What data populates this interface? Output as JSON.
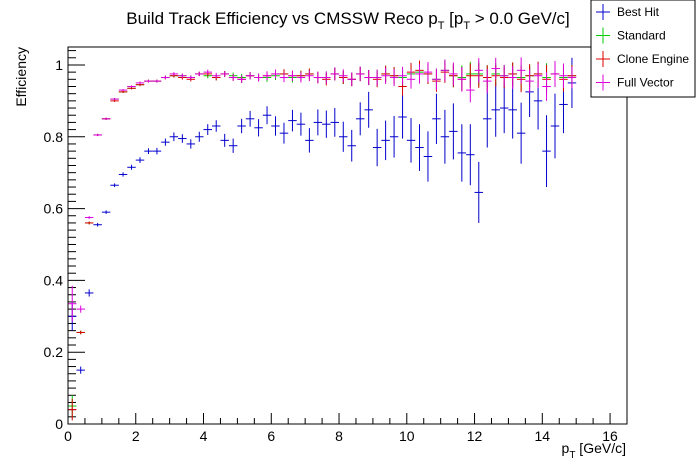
{
  "chart_data": {
    "type": "scatter",
    "title_parts": [
      "Build Track Efficiency vs CMSSW Reco p",
      "T",
      " [p",
      "T",
      " > 0.0 GeV/c]"
    ],
    "xlabel_parts": [
      "p",
      "T",
      " [GeV/c]"
    ],
    "ylabel": "Efficiency",
    "xlim": [
      0,
      16.5
    ],
    "ylim": [
      0,
      1.05
    ],
    "x_ticks": [
      0,
      2,
      4,
      6,
      8,
      10,
      12,
      14,
      16
    ],
    "y_ticks": [
      0,
      0.2,
      0.4,
      0.6,
      0.8,
      1
    ],
    "x_tick_labels": [
      "0",
      "2",
      "4",
      "6",
      "8",
      "10",
      "12",
      "14",
      "16"
    ],
    "y_tick_labels": [
      "0",
      "0.2",
      "0.4",
      "0.6",
      "0.8",
      "1"
    ],
    "bin_width": 0.25,
    "legend_position": "top-right",
    "series": [
      {
        "name": "Best Hit",
        "color": "#0000cc",
        "x": [
          0.125,
          0.375,
          0.625,
          0.875,
          1.125,
          1.375,
          1.625,
          1.875,
          2.125,
          2.375,
          2.625,
          2.875,
          3.125,
          3.375,
          3.625,
          3.875,
          4.125,
          4.375,
          4.625,
          4.875,
          5.125,
          5.375,
          5.625,
          5.875,
          6.125,
          6.375,
          6.625,
          6.875,
          7.125,
          7.375,
          7.625,
          7.875,
          8.125,
          8.375,
          8.625,
          8.875,
          9.125,
          9.375,
          9.625,
          9.875,
          10.125,
          10.375,
          10.625,
          10.875,
          11.125,
          11.375,
          11.625,
          11.875,
          12.125,
          12.375,
          12.625,
          12.875,
          13.125,
          13.375,
          13.625,
          13.875,
          14.125,
          14.375,
          14.625,
          14.875
        ],
        "y": [
          0.3,
          0.15,
          0.365,
          0.555,
          0.59,
          0.665,
          0.695,
          0.715,
          0.735,
          0.76,
          0.76,
          0.785,
          0.8,
          0.795,
          0.78,
          0.8,
          0.82,
          0.83,
          0.79,
          0.775,
          0.83,
          0.85,
          0.825,
          0.86,
          0.83,
          0.81,
          0.845,
          0.835,
          0.79,
          0.84,
          0.835,
          0.84,
          0.8,
          0.775,
          0.85,
          0.875,
          0.77,
          0.79,
          0.8,
          0.855,
          0.79,
          0.77,
          0.745,
          0.85,
          0.8,
          0.815,
          0.755,
          0.75,
          0.645,
          0.85,
          0.875,
          0.88,
          0.875,
          0.81,
          0.925,
          0.9,
          0.76,
          0.83,
          0.89,
          0.95
        ],
        "err": [
          0.04,
          0.01,
          0.01,
          0.005,
          0.005,
          0.005,
          0.006,
          0.007,
          0.008,
          0.008,
          0.009,
          0.01,
          0.012,
          0.012,
          0.013,
          0.014,
          0.015,
          0.016,
          0.018,
          0.02,
          0.02,
          0.022,
          0.024,
          0.025,
          0.027,
          0.029,
          0.03,
          0.032,
          0.034,
          0.036,
          0.038,
          0.04,
          0.042,
          0.044,
          0.046,
          0.05,
          0.052,
          0.055,
          0.058,
          0.06,
          0.062,
          0.065,
          0.07,
          0.07,
          0.075,
          0.078,
          0.08,
          0.085,
          0.085,
          0.08,
          0.075,
          0.07,
          0.08,
          0.085,
          0.07,
          0.08,
          0.1,
          0.09,
          0.08,
          0.07
        ]
      },
      {
        "name": "Standard",
        "color": "#00cc00",
        "x": [
          0.125,
          0.375,
          0.625,
          0.875,
          1.125,
          1.375,
          1.625,
          1.875,
          2.125,
          2.375,
          2.625,
          2.875,
          3.125,
          3.375,
          3.625,
          3.875,
          4.125,
          4.375,
          4.625,
          4.875,
          5.125,
          5.375,
          5.625,
          5.875,
          6.125,
          6.375,
          6.625,
          6.875,
          7.125,
          7.375,
          7.625,
          7.875,
          8.125,
          8.375,
          8.625,
          8.875,
          9.125,
          9.375,
          9.625,
          9.875,
          10.125,
          10.375,
          10.625,
          10.875,
          11.125,
          11.375,
          11.625,
          11.875,
          12.125,
          12.375,
          12.625,
          12.875,
          13.125,
          13.375,
          13.625,
          13.875,
          14.125,
          14.375,
          14.625,
          14.875
        ],
        "y": [
          0.05,
          0.255,
          0.56,
          0.805,
          0.85,
          0.905,
          0.925,
          0.935,
          0.945,
          0.955,
          0.955,
          0.965,
          0.97,
          0.97,
          0.965,
          0.975,
          0.97,
          0.965,
          0.975,
          0.97,
          0.965,
          0.97,
          0.965,
          0.965,
          0.97,
          0.975,
          0.965,
          0.97,
          0.975,
          0.965,
          0.965,
          0.975,
          0.965,
          0.96,
          0.975,
          0.965,
          0.965,
          0.975,
          0.97,
          0.965,
          0.975,
          0.98,
          0.975,
          0.96,
          0.985,
          0.97,
          0.965,
          0.975,
          0.975,
          0.965,
          0.975,
          0.97,
          0.975,
          0.965,
          0.97,
          0.975,
          0.965,
          0.975,
          0.965,
          0.97
        ],
        "err": [
          0.03,
          0.005,
          0.004,
          0.003,
          0.003,
          0.003,
          0.003,
          0.003,
          0.004,
          0.004,
          0.004,
          0.005,
          0.005,
          0.006,
          0.006,
          0.006,
          0.007,
          0.008,
          0.008,
          0.009,
          0.01,
          0.01,
          0.011,
          0.012,
          0.012,
          0.013,
          0.014,
          0.014,
          0.015,
          0.016,
          0.017,
          0.018,
          0.018,
          0.019,
          0.02,
          0.021,
          0.022,
          0.023,
          0.024,
          0.025,
          0.026,
          0.027,
          0.028,
          0.03,
          0.03,
          0.032,
          0.034,
          0.034,
          0.034,
          0.034,
          0.03,
          0.03,
          0.032,
          0.036,
          0.032,
          0.034,
          0.04,
          0.036,
          0.034,
          0.03
        ]
      },
      {
        "name": "Clone Engine",
        "color": "#dd0000",
        "x": [
          0.125,
          0.375,
          0.625,
          0.875,
          1.125,
          1.375,
          1.625,
          1.875,
          2.125,
          2.375,
          2.625,
          2.875,
          3.125,
          3.375,
          3.625,
          3.875,
          4.125,
          4.375,
          4.625,
          4.875,
          5.125,
          5.375,
          5.625,
          5.875,
          6.125,
          6.375,
          6.625,
          6.875,
          7.125,
          7.375,
          7.625,
          7.875,
          8.125,
          8.375,
          8.625,
          8.875,
          9.125,
          9.375,
          9.625,
          9.875,
          10.125,
          10.375,
          10.625,
          10.875,
          11.125,
          11.375,
          11.625,
          11.875,
          12.125,
          12.375,
          12.625,
          12.875,
          13.125,
          13.375,
          13.625,
          13.875,
          14.125,
          14.375,
          14.625,
          14.875
        ],
        "y": [
          0.04,
          0.255,
          0.56,
          0.805,
          0.85,
          0.9,
          0.925,
          0.935,
          0.945,
          0.955,
          0.955,
          0.965,
          0.97,
          0.965,
          0.96,
          0.975,
          0.975,
          0.965,
          0.975,
          0.965,
          0.96,
          0.97,
          0.965,
          0.97,
          0.975,
          0.975,
          0.97,
          0.97,
          0.975,
          0.965,
          0.96,
          0.975,
          0.965,
          0.96,
          0.975,
          0.965,
          0.96,
          0.975,
          0.97,
          0.94,
          0.98,
          0.985,
          0.975,
          0.955,
          0.98,
          0.97,
          0.96,
          0.97,
          0.97,
          0.965,
          0.97,
          0.965,
          0.975,
          0.96,
          0.97,
          0.975,
          0.96,
          0.975,
          0.96,
          0.97
        ],
        "err": [
          0.03,
          0.005,
          0.004,
          0.003,
          0.003,
          0.003,
          0.003,
          0.003,
          0.004,
          0.004,
          0.004,
          0.005,
          0.005,
          0.006,
          0.006,
          0.006,
          0.007,
          0.008,
          0.008,
          0.009,
          0.01,
          0.01,
          0.011,
          0.012,
          0.012,
          0.013,
          0.014,
          0.014,
          0.015,
          0.016,
          0.017,
          0.018,
          0.018,
          0.019,
          0.02,
          0.021,
          0.022,
          0.023,
          0.024,
          0.025,
          0.026,
          0.027,
          0.028,
          0.03,
          0.03,
          0.032,
          0.034,
          0.034,
          0.034,
          0.034,
          0.03,
          0.03,
          0.032,
          0.036,
          0.032,
          0.034,
          0.04,
          0.036,
          0.034,
          0.03
        ]
      },
      {
        "name": "Full Vector",
        "color": "#dd00dd",
        "x": [
          0.125,
          0.375,
          0.625,
          0.875,
          1.125,
          1.375,
          1.625,
          1.875,
          2.125,
          2.375,
          2.625,
          2.875,
          3.125,
          3.375,
          3.625,
          3.875,
          4.125,
          4.375,
          4.625,
          4.875,
          5.125,
          5.375,
          5.625,
          5.875,
          6.125,
          6.375,
          6.625,
          6.875,
          7.125,
          7.375,
          7.625,
          7.875,
          8.125,
          8.375,
          8.625,
          8.875,
          9.125,
          9.375,
          9.625,
          9.875,
          10.125,
          10.375,
          10.625,
          10.875,
          11.125,
          11.375,
          11.625,
          11.875,
          12.125,
          12.375,
          12.625,
          12.875,
          13.125,
          13.375,
          13.625,
          13.875,
          14.125,
          14.375,
          14.625,
          14.875
        ],
        "y": [
          0.335,
          0.32,
          0.575,
          0.805,
          0.85,
          0.905,
          0.93,
          0.94,
          0.95,
          0.955,
          0.955,
          0.965,
          0.975,
          0.97,
          0.965,
          0.975,
          0.98,
          0.97,
          0.975,
          0.965,
          0.96,
          0.97,
          0.965,
          0.97,
          0.975,
          0.965,
          0.97,
          0.965,
          0.97,
          0.965,
          0.965,
          0.975,
          0.97,
          0.96,
          0.975,
          0.965,
          0.965,
          0.97,
          0.965,
          0.97,
          0.96,
          0.975,
          0.98,
          0.96,
          0.985,
          0.975,
          0.96,
          0.93,
          0.985,
          0.955,
          0.99,
          0.97,
          0.965,
          0.985,
          0.955,
          0.97,
          0.94,
          0.975,
          0.97,
          0.965
        ],
        "err": [
          0.05,
          0.01,
          0.004,
          0.003,
          0.003,
          0.003,
          0.003,
          0.003,
          0.004,
          0.004,
          0.004,
          0.005,
          0.005,
          0.006,
          0.006,
          0.006,
          0.007,
          0.008,
          0.008,
          0.009,
          0.01,
          0.01,
          0.011,
          0.012,
          0.012,
          0.013,
          0.014,
          0.014,
          0.015,
          0.016,
          0.017,
          0.018,
          0.018,
          0.019,
          0.02,
          0.021,
          0.022,
          0.023,
          0.024,
          0.025,
          0.026,
          0.027,
          0.028,
          0.03,
          0.03,
          0.032,
          0.034,
          0.034,
          0.034,
          0.034,
          0.03,
          0.03,
          0.032,
          0.036,
          0.032,
          0.034,
          0.04,
          0.036,
          0.034,
          0.03
        ]
      }
    ]
  }
}
